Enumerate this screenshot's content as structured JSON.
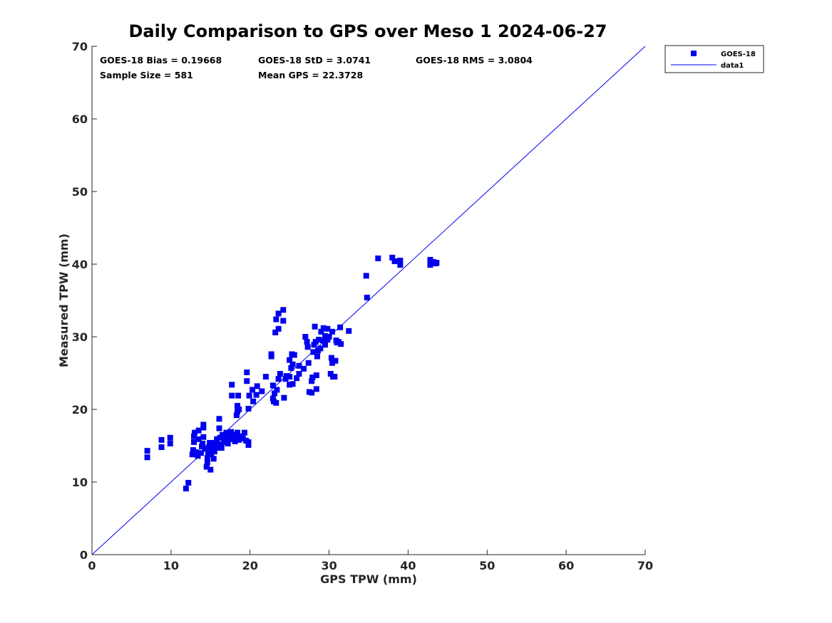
{
  "chart_data": {
    "type": "scatter",
    "title": "Daily Comparison to GPS over Meso 1 2024-06-27",
    "xlabel": "GPS TPW (mm)",
    "ylabel": "Measured TPW (mm)",
    "xlim": [
      0,
      70
    ],
    "ylim": [
      0,
      70
    ],
    "x_ticks": [
      "0",
      "10",
      "20",
      "30",
      "40",
      "50",
      "60",
      "70"
    ],
    "y_ticks": [
      "0",
      "10",
      "20",
      "30",
      "40",
      "50",
      "60",
      "70"
    ],
    "grid": false,
    "legend_position": "outside-top-right",
    "stats": [
      "GOES-18 Bias = 0.19668",
      "GOES-18 StD = 3.0741",
      "GOES-18 RMS = 3.0804",
      "Sample Size = 581",
      "Mean GPS = 22.3728"
    ],
    "series": [
      {
        "name": "GOES-18",
        "type": "scatter",
        "marker": "square",
        "color": "#0000ee",
        "points": [
          [
            7.0,
            13.4
          ],
          [
            7.0,
            14.3
          ],
          [
            8.8,
            14.8
          ],
          [
            8.8,
            15.8
          ],
          [
            9.9,
            15.3
          ],
          [
            9.9,
            16.1
          ],
          [
            11.9,
            9.1
          ],
          [
            12.2,
            9.9
          ],
          [
            12.7,
            13.8
          ],
          [
            12.8,
            14.4
          ],
          [
            12.9,
            15.5
          ],
          [
            12.9,
            16.3
          ],
          [
            13.0,
            16.8
          ],
          [
            13.2,
            14.1
          ],
          [
            13.4,
            13.6
          ],
          [
            13.5,
            15.9
          ],
          [
            13.5,
            17.1
          ],
          [
            13.8,
            14.0
          ],
          [
            13.9,
            14.9
          ],
          [
            14.0,
            15.3
          ],
          [
            14.1,
            16.2
          ],
          [
            14.1,
            17.5
          ],
          [
            14.1,
            17.9
          ],
          [
            14.3,
            14.6
          ],
          [
            14.5,
            12.1
          ],
          [
            14.6,
            12.7
          ],
          [
            14.6,
            13.3
          ],
          [
            14.7,
            14.0
          ],
          [
            14.8,
            14.8
          ],
          [
            14.9,
            15.4
          ],
          [
            15.0,
            11.7
          ],
          [
            15.1,
            13.8
          ],
          [
            15.2,
            14.4
          ],
          [
            15.3,
            15.1
          ],
          [
            15.4,
            13.2
          ],
          [
            15.5,
            14.2
          ],
          [
            15.6,
            15.4
          ],
          [
            15.7,
            14.7
          ],
          [
            15.8,
            15.9
          ],
          [
            16.0,
            15.2
          ],
          [
            16.1,
            17.4
          ],
          [
            16.1,
            18.7
          ],
          [
            16.2,
            16.1
          ],
          [
            16.3,
            15.0
          ],
          [
            16.4,
            14.7
          ],
          [
            16.5,
            16.5
          ],
          [
            16.7,
            15.5
          ],
          [
            16.8,
            16.2
          ],
          [
            17.0,
            15.7
          ],
          [
            17.0,
            16.8
          ],
          [
            17.2,
            15.3
          ],
          [
            17.3,
            16.5
          ],
          [
            17.5,
            15.9
          ],
          [
            17.6,
            16.9
          ],
          [
            17.8,
            16.2
          ],
          [
            18.0,
            16.5
          ],
          [
            18.1,
            15.6
          ],
          [
            18.3,
            16.2
          ],
          [
            18.4,
            16.8
          ],
          [
            18.6,
            15.8
          ],
          [
            18.9,
            16.3
          ],
          [
            19.1,
            16.0
          ],
          [
            19.3,
            16.8
          ],
          [
            19.5,
            15.7
          ],
          [
            19.8,
            15.1
          ],
          [
            19.8,
            15.5
          ],
          [
            17.7,
            21.9
          ],
          [
            17.7,
            23.4
          ],
          [
            18.3,
            19.2
          ],
          [
            18.4,
            19.7
          ],
          [
            18.4,
            20.5
          ],
          [
            18.5,
            21.9
          ],
          [
            18.6,
            20.0
          ],
          [
            19.6,
            23.9
          ],
          [
            19.6,
            25.1
          ],
          [
            19.8,
            20.1
          ],
          [
            19.9,
            21.9
          ],
          [
            20.3,
            22.7
          ],
          [
            20.4,
            21.1
          ],
          [
            20.8,
            22.0
          ],
          [
            20.9,
            23.2
          ],
          [
            21.5,
            22.5
          ],
          [
            22.0,
            24.5
          ],
          [
            22.7,
            27.3
          ],
          [
            22.7,
            27.6
          ],
          [
            22.9,
            23.3
          ],
          [
            22.9,
            21.5
          ],
          [
            23.0,
            21.1
          ],
          [
            23.1,
            22.2
          ],
          [
            23.2,
            30.6
          ],
          [
            23.3,
            32.4
          ],
          [
            23.3,
            20.9
          ],
          [
            23.4,
            22.7
          ],
          [
            23.6,
            31.1
          ],
          [
            23.6,
            33.2
          ],
          [
            23.6,
            24.2
          ],
          [
            23.8,
            24.9
          ],
          [
            24.2,
            33.7
          ],
          [
            24.2,
            32.2
          ],
          [
            24.3,
            21.6
          ],
          [
            24.5,
            24.2
          ],
          [
            24.6,
            24.6
          ],
          [
            25.0,
            23.4
          ],
          [
            25.0,
            24.5
          ],
          [
            25.0,
            26.8
          ],
          [
            25.2,
            25.7
          ],
          [
            25.3,
            27.6
          ],
          [
            25.4,
            23.5
          ],
          [
            25.4,
            26.2
          ],
          [
            25.6,
            27.5
          ],
          [
            25.9,
            24.3
          ],
          [
            26.2,
            26.0
          ],
          [
            26.2,
            24.9
          ],
          [
            26.8,
            25.6
          ],
          [
            27.0,
            30.0
          ],
          [
            27.2,
            29.3
          ],
          [
            27.3,
            28.6
          ],
          [
            27.4,
            26.4
          ],
          [
            27.5,
            22.4
          ],
          [
            27.8,
            22.3
          ],
          [
            27.8,
            23.9
          ],
          [
            27.9,
            24.4
          ],
          [
            28.0,
            27.9
          ],
          [
            28.1,
            28.9
          ],
          [
            28.2,
            31.4
          ],
          [
            28.3,
            29.3
          ],
          [
            28.4,
            22.8
          ],
          [
            28.4,
            24.7
          ],
          [
            28.5,
            27.3
          ],
          [
            28.6,
            28.1
          ],
          [
            28.7,
            29.6
          ],
          [
            28.9,
            28.4
          ],
          [
            29.0,
            30.7
          ],
          [
            29.2,
            29.5
          ],
          [
            29.3,
            31.2
          ],
          [
            29.5,
            30.1
          ],
          [
            29.5,
            28.9
          ],
          [
            29.8,
            29.6
          ],
          [
            29.8,
            31.1
          ],
          [
            30.0,
            30.0
          ],
          [
            30.2,
            24.9
          ],
          [
            30.3,
            27.1
          ],
          [
            30.4,
            26.4
          ],
          [
            30.4,
            30.7
          ],
          [
            30.5,
            24.5
          ],
          [
            30.7,
            24.5
          ],
          [
            30.8,
            26.7
          ],
          [
            30.9,
            29.5
          ],
          [
            31.0,
            29.2
          ],
          [
            31.2,
            29.3
          ],
          [
            31.4,
            31.3
          ],
          [
            31.5,
            29.0
          ],
          [
            32.5,
            30.8
          ],
          [
            34.7,
            38.4
          ],
          [
            34.8,
            35.4
          ],
          [
            36.2,
            40.8
          ],
          [
            38.0,
            40.9
          ],
          [
            38.3,
            40.4
          ],
          [
            39.0,
            39.9
          ],
          [
            39.0,
            40.5
          ],
          [
            42.8,
            39.9
          ],
          [
            42.8,
            40.6
          ],
          [
            43.2,
            40.3
          ],
          [
            43.5,
            40.1
          ],
          [
            43.6,
            40.2
          ]
        ]
      },
      {
        "name": "data1",
        "type": "line",
        "color": "#0000ee",
        "x": [
          0,
          70
        ],
        "y": [
          0,
          70
        ]
      }
    ]
  }
}
